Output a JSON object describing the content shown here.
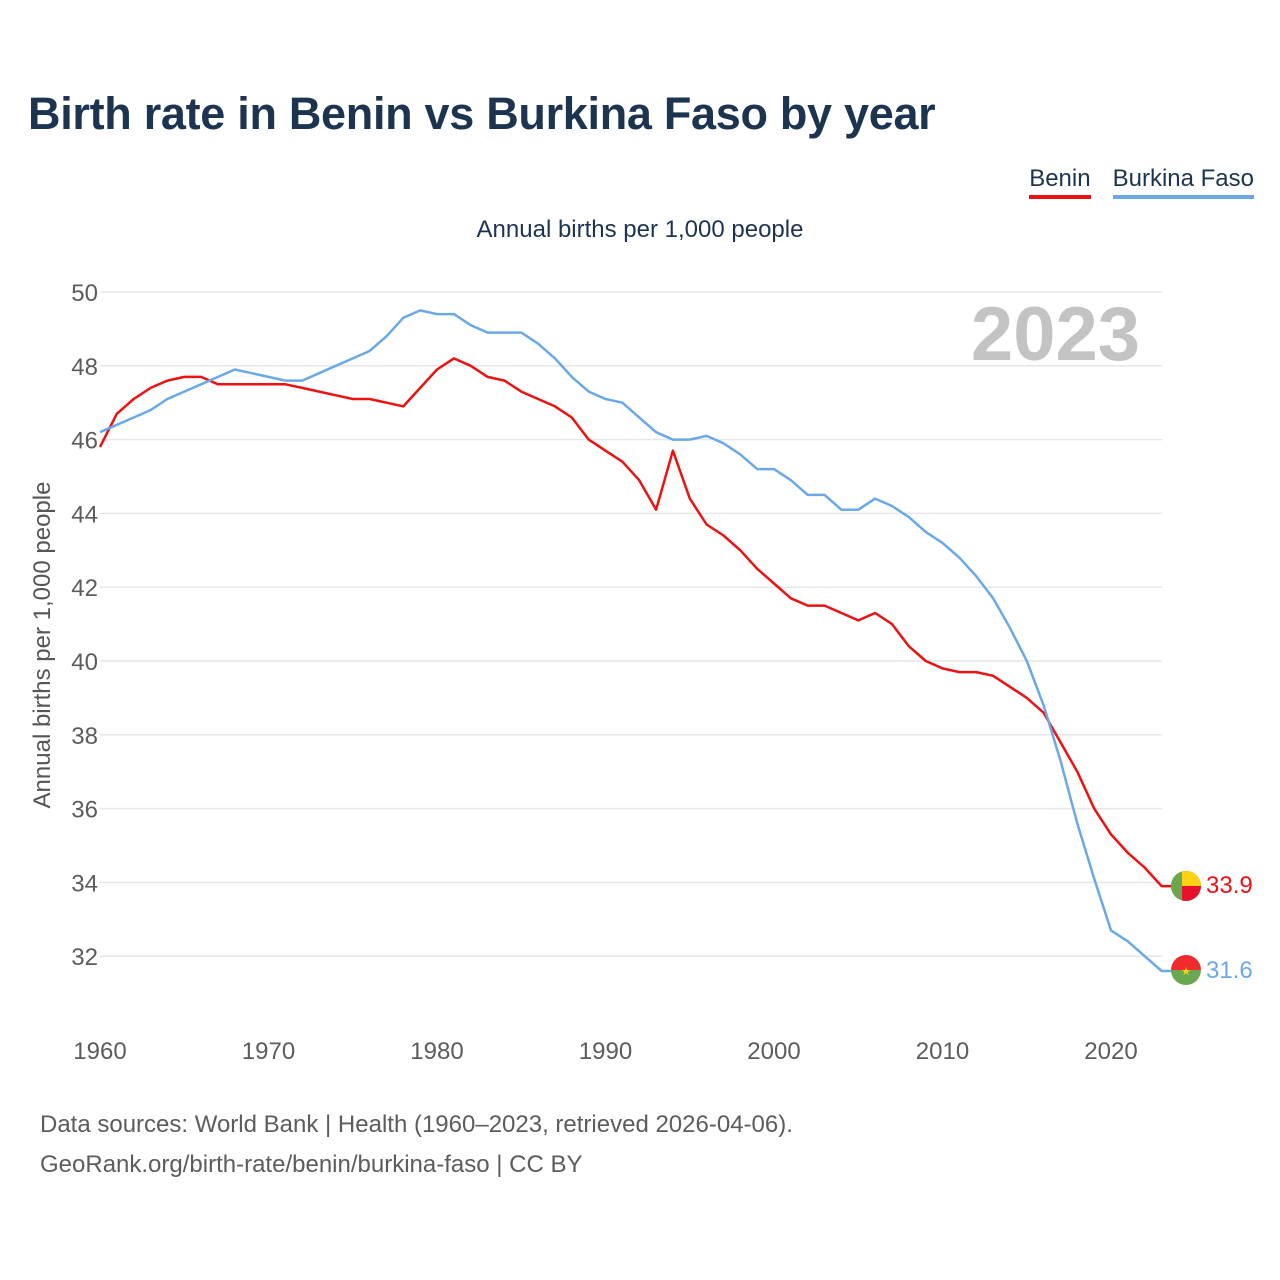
{
  "title": "Birth rate in Benin vs Burkina Faso by year",
  "subtitle": "Annual births per 1,000 people",
  "legend": [
    {
      "name": "Benin",
      "color": "#ee1111"
    },
    {
      "name": "Burkina Faso",
      "color": "#6aa9e6"
    }
  ],
  "year_watermark": "2023",
  "footer": {
    "line1": "Data sources: World Bank | Health (1960–2023, retrieved 2026-04-06).",
    "line2": "GeoRank.org/birth-rate/benin/burkina-faso | CC BY"
  },
  "chart_data": {
    "type": "line",
    "title": "Birth rate in Benin vs Burkina Faso by year",
    "xlabel": "",
    "ylabel": "Annual births per 1,000 people",
    "xlim": [
      1960,
      2024
    ],
    "ylim": [
      31,
      50
    ],
    "xticks": [
      1960,
      1970,
      1980,
      1990,
      2000,
      2010,
      2020
    ],
    "yticks": [
      32,
      34,
      36,
      38,
      40,
      42,
      44,
      46,
      48,
      50
    ],
    "grid": true,
    "x": [
      1960,
      1961,
      1962,
      1963,
      1964,
      1965,
      1966,
      1967,
      1968,
      1969,
      1970,
      1971,
      1972,
      1973,
      1974,
      1975,
      1976,
      1977,
      1978,
      1979,
      1980,
      1981,
      1982,
      1983,
      1984,
      1985,
      1986,
      1987,
      1988,
      1989,
      1990,
      1991,
      1992,
      1993,
      1994,
      1995,
      1996,
      1997,
      1998,
      1999,
      2000,
      2001,
      2002,
      2003,
      2004,
      2005,
      2006,
      2007,
      2008,
      2009,
      2010,
      2011,
      2012,
      2013,
      2014,
      2015,
      2016,
      2017,
      2018,
      2019,
      2020,
      2021,
      2022,
      2023
    ],
    "series": [
      {
        "name": "Benin",
        "color": "#ee1111",
        "end_label": "33.9",
        "values": [
          45.8,
          46.7,
          47.1,
          47.4,
          47.6,
          47.7,
          47.7,
          47.5,
          47.5,
          47.5,
          47.5,
          47.5,
          47.4,
          47.3,
          47.2,
          47.1,
          47.1,
          47.0,
          46.9,
          47.4,
          47.9,
          48.2,
          48.0,
          47.7,
          47.6,
          47.3,
          47.1,
          46.9,
          46.6,
          46.0,
          45.7,
          45.4,
          44.9,
          44.1,
          45.7,
          44.4,
          43.7,
          43.4,
          43.0,
          42.5,
          42.1,
          41.7,
          41.5,
          41.5,
          41.3,
          41.1,
          41.3,
          41.0,
          40.4,
          40.0,
          39.8,
          39.7,
          39.7,
          39.6,
          39.3,
          39.0,
          38.6,
          37.8,
          37.0,
          36.0,
          35.3,
          34.8,
          34.4,
          33.9
        ]
      },
      {
        "name": "Burkina Faso",
        "color": "#6aa9e6",
        "end_label": "31.6",
        "values": [
          46.2,
          46.4,
          46.6,
          46.8,
          47.1,
          47.3,
          47.5,
          47.7,
          47.9,
          47.8,
          47.7,
          47.6,
          47.6,
          47.8,
          48.0,
          48.2,
          48.4,
          48.8,
          49.3,
          49.5,
          49.4,
          49.4,
          49.1,
          48.9,
          48.9,
          48.9,
          48.6,
          48.2,
          47.7,
          47.3,
          47.1,
          47.0,
          46.6,
          46.2,
          46.0,
          46.0,
          46.1,
          45.9,
          45.6,
          45.2,
          45.2,
          44.9,
          44.5,
          44.5,
          44.1,
          44.1,
          44.4,
          44.2,
          43.9,
          43.5,
          43.2,
          42.8,
          42.3,
          41.7,
          40.9,
          40.0,
          38.8,
          37.3,
          35.6,
          34.1,
          32.7,
          32.4,
          32.0,
          31.6
        ]
      }
    ]
  }
}
